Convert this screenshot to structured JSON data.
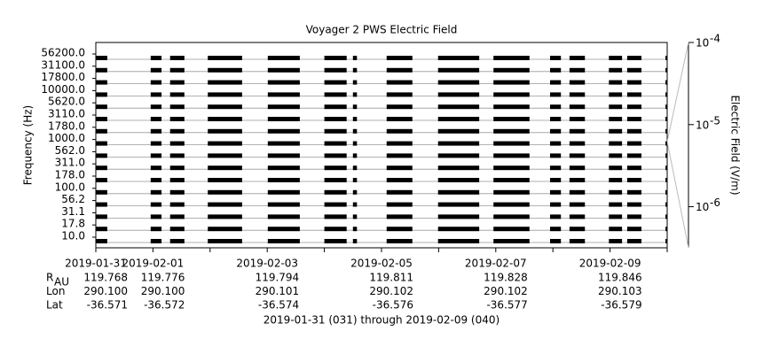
{
  "chart_data": {
    "type": "channel-coverage",
    "title": "Voyager 2 PWS Electric Field",
    "ylabel": "Frequency (Hz)",
    "y2label": "Electric Field (V/m)",
    "footer": "2019-01-31 (031) through 2019-02-09 (040)",
    "xlim": [
      0,
      10
    ],
    "xticks": [
      {
        "value": 0,
        "label": "2019-01-31"
      },
      {
        "value": 1,
        "label": "2019-02-01"
      },
      {
        "value": 3,
        "label": "2019-02-03"
      },
      {
        "value": 5,
        "label": "2019-02-05"
      },
      {
        "value": 7,
        "label": "2019-02-07"
      },
      {
        "value": 9,
        "label": "2019-02-09"
      }
    ],
    "xminor": [
      2,
      4,
      6,
      8,
      10
    ],
    "channels": [
      {
        "value": 10,
        "label": "10.0"
      },
      {
        "value": 17.8,
        "label": "17.8"
      },
      {
        "value": 31.1,
        "label": "31.1"
      },
      {
        "value": 56.2,
        "label": "56.2"
      },
      {
        "value": 100,
        "label": "100.0"
      },
      {
        "value": 178,
        "label": "178.0"
      },
      {
        "value": 311,
        "label": "311.0"
      },
      {
        "value": 562,
        "label": "562.0"
      },
      {
        "value": 1000,
        "label": "1000.0"
      },
      {
        "value": 1780,
        "label": "1780.0"
      },
      {
        "value": 3110,
        "label": "3110.0"
      },
      {
        "value": 5620,
        "label": "5620.0"
      },
      {
        "value": 10000,
        "label": "10000.0"
      },
      {
        "value": 17800,
        "label": "17800.0"
      },
      {
        "value": 31100,
        "label": "31100.0"
      },
      {
        "value": 56200,
        "label": "56200.0"
      }
    ],
    "segments": [
      [
        0.0,
        0.2
      ],
      [
        0.96,
        1.15
      ],
      [
        1.3,
        1.55
      ],
      [
        1.96,
        2.56
      ],
      [
        3.01,
        3.57
      ],
      [
        4.0,
        4.39
      ],
      [
        4.5,
        4.57
      ],
      [
        5.09,
        5.54
      ],
      [
        5.99,
        6.71
      ],
      [
        6.96,
        7.59
      ],
      [
        7.95,
        8.14
      ],
      [
        8.29,
        8.56
      ],
      [
        8.98,
        9.21
      ],
      [
        9.3,
        9.55
      ],
      [
        9.97,
        10.0
      ]
    ],
    "color": "#000000",
    "y2log": true,
    "y2lim": [
      3.16e-07,
      0.0001
    ],
    "y2ticks": [
      {
        "value": 0.0001,
        "label": "10",
        "sup": "-4"
      },
      {
        "value": 1e-05,
        "label": "10",
        "sup": "-5"
      },
      {
        "value": 1e-06,
        "label": "10",
        "sup": "-6"
      }
    ],
    "ephemeris": [
      {
        "label": "R",
        "sub": "AU",
        "values": [
          "119.768",
          "119.776",
          "119.794",
          "119.811",
          "119.828",
          "119.846"
        ]
      },
      {
        "label": "Lon",
        "values": [
          "290.100",
          "290.100",
          "290.101",
          "290.102",
          "290.102",
          "290.103"
        ]
      },
      {
        "label": "Lat",
        "values": [
          "-36.571",
          "-36.572",
          "-36.574",
          "-36.576",
          "-36.577",
          "-36.579"
        ]
      }
    ]
  }
}
